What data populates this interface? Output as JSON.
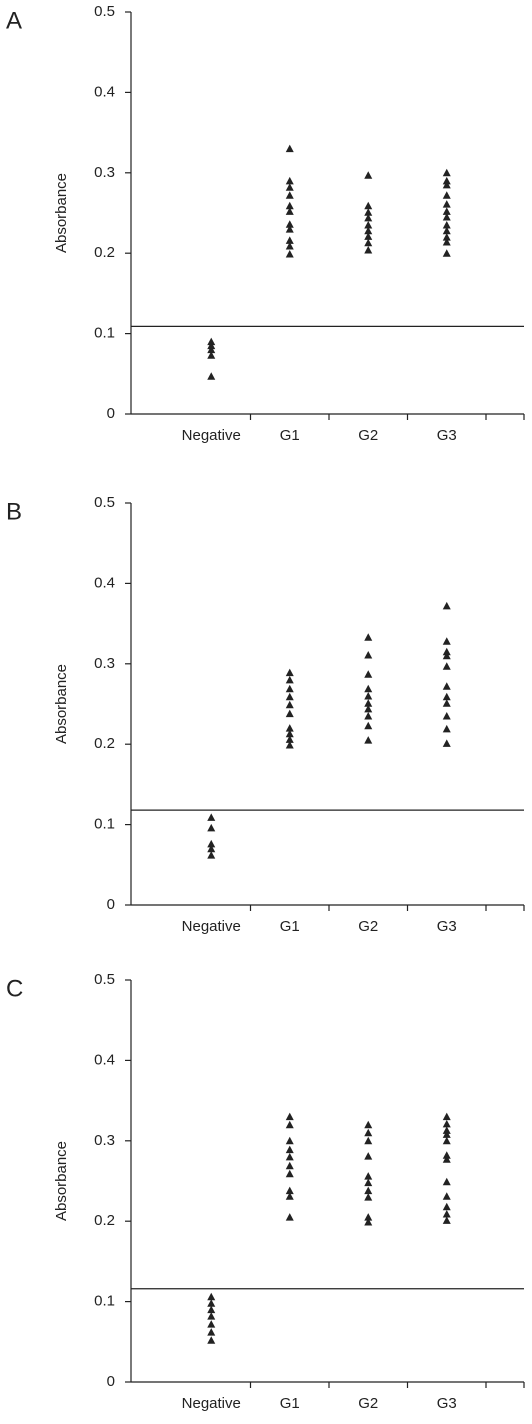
{
  "chart_data": [
    {
      "type": "scatter",
      "label": "A",
      "ylabel": "Absorbance",
      "color": "#222222",
      "categories": [
        "Negative",
        "G1",
        "G2",
        "G3"
      ],
      "values": [
        [
          0.09,
          0.085,
          0.08,
          0.073,
          0.047
        ],
        [
          0.33,
          0.29,
          0.282,
          0.272,
          0.259,
          0.252,
          0.236,
          0.23,
          0.216,
          0.209,
          0.199
        ],
        [
          0.297,
          0.259,
          0.251,
          0.244,
          0.235,
          0.228,
          0.221,
          0.213,
          0.204
        ],
        [
          0.3,
          0.29,
          0.285,
          0.272,
          0.261,
          0.252,
          0.245,
          0.235,
          0.228,
          0.22,
          0.214,
          0.2
        ]
      ],
      "reference_line": 0.109,
      "ylim": [
        0,
        0.5
      ],
      "yticks": [
        0,
        0.1,
        0.2,
        0.3,
        0.4,
        0.5
      ]
    },
    {
      "type": "scatter",
      "label": "B",
      "ylabel": "Absorbance",
      "color": "#222222",
      "categories": [
        "Negative",
        "G1",
        "G2",
        "G3"
      ],
      "values": [
        [
          0.109,
          0.096,
          0.076,
          0.07,
          0.062
        ],
        [
          0.289,
          0.28,
          0.269,
          0.259,
          0.249,
          0.238,
          0.22,
          0.213,
          0.206,
          0.199
        ],
        [
          0.333,
          0.311,
          0.287,
          0.269,
          0.26,
          0.251,
          0.244,
          0.235,
          0.223,
          0.205
        ],
        [
          0.372,
          0.328,
          0.315,
          0.31,
          0.297,
          0.272,
          0.259,
          0.251,
          0.235,
          0.219,
          0.201
        ]
      ],
      "reference_line": 0.118,
      "ylim": [
        0,
        0.5
      ],
      "yticks": [
        0,
        0.1,
        0.2,
        0.3,
        0.4,
        0.5
      ]
    },
    {
      "type": "scatter",
      "label": "C",
      "ylabel": "Absorbance",
      "color": "#222222",
      "categories": [
        "Negative",
        "G1",
        "G2",
        "G3"
      ],
      "values": [
        [
          0.106,
          0.098,
          0.09,
          0.082,
          0.072,
          0.062,
          0.052
        ],
        [
          0.33,
          0.32,
          0.3,
          0.289,
          0.28,
          0.269,
          0.259,
          0.238,
          0.231,
          0.205
        ],
        [
          0.32,
          0.31,
          0.3,
          0.281,
          0.256,
          0.248,
          0.238,
          0.23,
          0.205,
          0.199
        ],
        [
          0.33,
          0.321,
          0.313,
          0.308,
          0.3,
          0.282,
          0.277,
          0.249,
          0.231,
          0.218,
          0.209,
          0.201
        ]
      ],
      "reference_line": 0.116,
      "ylim": [
        0,
        0.5
      ],
      "yticks": [
        0,
        0.1,
        0.2,
        0.3,
        0.4,
        0.5
      ]
    }
  ]
}
